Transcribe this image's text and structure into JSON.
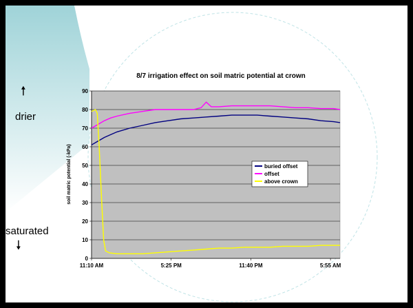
{
  "slide": {
    "drier_label": "drier",
    "saturated_label": "saturated"
  },
  "chart_data": {
    "type": "line",
    "title": "8/7 irrigation effect on soil matric potential at crown",
    "xlabel": "",
    "ylabel": "soil matric potential (-kPa)",
    "ylim": [
      0,
      90
    ],
    "y_ticks": [
      0,
      10,
      20,
      30,
      40,
      50,
      60,
      70,
      80,
      90
    ],
    "x_tick_labels": [
      "11:10 AM",
      "5:25 PM",
      "11:40 PM",
      "5:55 AM"
    ],
    "x_tick_positions_hours": [
      0,
      6.25,
      12.5,
      18.75
    ],
    "xlim_hours": [
      0,
      19.5
    ],
    "grid": true,
    "legend_position": "right",
    "series": [
      {
        "name": "buried offset",
        "color": "#000080",
        "points": [
          [
            0,
            61
          ],
          [
            0.5,
            63
          ],
          [
            1,
            65
          ],
          [
            1.5,
            66.5
          ],
          [
            2,
            68
          ],
          [
            3,
            70
          ],
          [
            4,
            71.5
          ],
          [
            5,
            73
          ],
          [
            6,
            74
          ],
          [
            7,
            75
          ],
          [
            8,
            75.5
          ],
          [
            9,
            76
          ],
          [
            10,
            76.5
          ],
          [
            11,
            77
          ],
          [
            12,
            77
          ],
          [
            13,
            77
          ],
          [
            14,
            76.5
          ],
          [
            15,
            76
          ],
          [
            16,
            75.5
          ],
          [
            17,
            75
          ],
          [
            18,
            74
          ],
          [
            19,
            73.5
          ],
          [
            19.5,
            73
          ]
        ]
      },
      {
        "name": "offset",
        "color": "#FF00FF",
        "points": [
          [
            0,
            70
          ],
          [
            0.5,
            72
          ],
          [
            1,
            74
          ],
          [
            1.5,
            75.5
          ],
          [
            2,
            76.5
          ],
          [
            3,
            78
          ],
          [
            4,
            79
          ],
          [
            5,
            80
          ],
          [
            6,
            80
          ],
          [
            7,
            80
          ],
          [
            8,
            80
          ],
          [
            8.6,
            81
          ],
          [
            9.0,
            84
          ],
          [
            9.4,
            81.5
          ],
          [
            10,
            81.5
          ],
          [
            11,
            82
          ],
          [
            12,
            82
          ],
          [
            13,
            82
          ],
          [
            14,
            82
          ],
          [
            15,
            81.5
          ],
          [
            16,
            81
          ],
          [
            17,
            81
          ],
          [
            18,
            80.5
          ],
          [
            19,
            80.5
          ],
          [
            19.5,
            80
          ]
        ]
      },
      {
        "name": "above crown",
        "color": "#FFFF00",
        "points": [
          [
            0,
            79
          ],
          [
            0.3,
            80
          ],
          [
            0.45,
            78
          ],
          [
            0.6,
            60
          ],
          [
            0.8,
            30
          ],
          [
            0.95,
            10
          ],
          [
            1.1,
            4
          ],
          [
            1.4,
            3
          ],
          [
            2,
            2.5
          ],
          [
            3,
            2.5
          ],
          [
            4,
            2.5
          ],
          [
            5,
            3
          ],
          [
            6,
            3.5
          ],
          [
            7,
            4
          ],
          [
            8,
            4.5
          ],
          [
            9,
            5
          ],
          [
            10,
            5.5
          ],
          [
            11,
            5.5
          ],
          [
            12,
            6
          ],
          [
            13,
            6
          ],
          [
            14,
            6
          ],
          [
            15,
            6.5
          ],
          [
            16,
            6.5
          ],
          [
            17,
            6.5
          ],
          [
            18,
            7
          ],
          [
            19,
            7
          ],
          [
            19.5,
            7
          ]
        ]
      }
    ]
  }
}
